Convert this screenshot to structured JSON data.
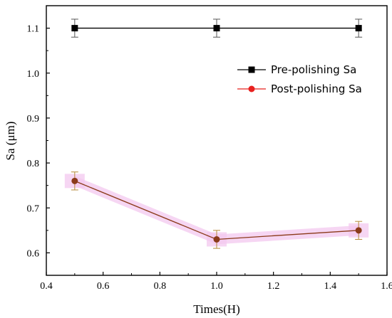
{
  "chart_data": {
    "type": "line",
    "xlabel": "Times(H)",
    "ylabel": "Sa (μm)",
    "xlim": [
      0.4,
      1.6
    ],
    "ylim": [
      0.55,
      1.15
    ],
    "x_ticks": [
      {
        "value": 0.4,
        "label": "0.4"
      },
      {
        "value": 0.6,
        "label": "0.6"
      },
      {
        "value": 0.8,
        "label": "0.8"
      },
      {
        "value": 1.0,
        "label": "1.0"
      },
      {
        "value": 1.2,
        "label": "1.2"
      },
      {
        "value": 1.4,
        "label": "1.4"
      },
      {
        "value": 1.6,
        "label": "1.6"
      }
    ],
    "y_ticks": [
      {
        "value": 0.6,
        "label": "0.6"
      },
      {
        "value": 0.7,
        "label": "0.7"
      },
      {
        "value": 0.8,
        "label": "0.8"
      },
      {
        "value": 0.9,
        "label": "0.9"
      },
      {
        "value": 1.0,
        "label": "1.0"
      },
      {
        "value": 1.1,
        "label": "1.1"
      }
    ],
    "grid": false,
    "legend_position": "top-right",
    "series": [
      {
        "name": "Pre-polishing Sa",
        "color": "#000000",
        "marker": "square",
        "x": [
          0.5,
          1.0,
          1.5
        ],
        "y": [
          1.1,
          1.1,
          1.1
        ],
        "error": [
          0.02,
          0.02,
          0.02
        ],
        "error_color": "#555555"
      },
      {
        "name": "Post-polishing Sa",
        "color": "#8B3A1A",
        "legend_color": "#e8211f",
        "marker": "circle",
        "x": [
          0.5,
          1.0,
          1.5
        ],
        "y": [
          0.76,
          0.63,
          0.65
        ],
        "error": [
          0.02,
          0.02,
          0.02
        ],
        "error_color": "#b5893a",
        "band_color": "#f3c8ef"
      }
    ]
  }
}
